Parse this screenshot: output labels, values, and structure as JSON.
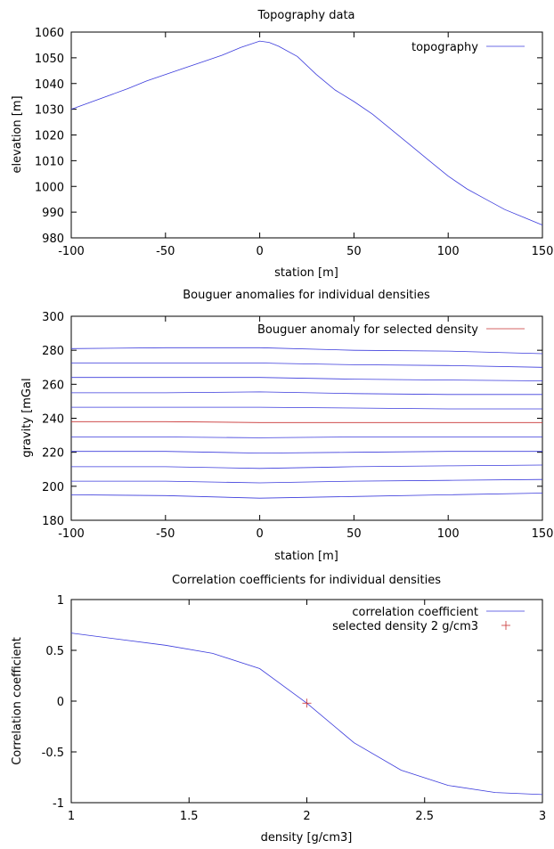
{
  "chart_data": [
    {
      "type": "line",
      "title": "Topography data",
      "xlabel": "station [m]",
      "ylabel": "elevation [m]",
      "xlim": [
        -100,
        150
      ],
      "ylim": [
        980,
        1060
      ],
      "xticks": [
        -100,
        -50,
        0,
        50,
        100,
        150
      ],
      "yticks": [
        980,
        990,
        1000,
        1010,
        1020,
        1030,
        1040,
        1050,
        1060
      ],
      "legend_position": "top-right",
      "grid": false,
      "series": [
        {
          "name": "topography",
          "color": "#3b3bdc",
          "x": [
            -100,
            -70,
            -60,
            -50,
            -40,
            -30,
            -20,
            -10,
            0,
            5,
            10,
            20,
            30,
            40,
            50,
            60,
            70,
            80,
            90,
            100,
            110,
            120,
            130,
            140,
            150
          ],
          "y": [
            1030,
            1038,
            1041,
            1043.5,
            1046,
            1048.5,
            1051,
            1054,
            1056.5,
            1056,
            1054.5,
            1050.5,
            1043.5,
            1037.5,
            1033,
            1028,
            1022,
            1016,
            1010,
            1004,
            999,
            995,
            991,
            988,
            985
          ]
        }
      ]
    },
    {
      "type": "line",
      "title": "Bouguer anomalies for individual densities",
      "xlabel": "station [m]",
      "ylabel": "gravity [mGal",
      "xlim": [
        -100,
        150
      ],
      "ylim": [
        180,
        300
      ],
      "xticks": [
        -100,
        -50,
        0,
        50,
        100,
        150
      ],
      "yticks": [
        180,
        200,
        220,
        240,
        260,
        280,
        300
      ],
      "legend_position": "top-right",
      "grid": false,
      "legend_label": "Bouguer anomaly for selected density",
      "selected_color": "#c83232",
      "curve_color": "#3b3bdc",
      "x": [
        -100,
        -50,
        0,
        50,
        100,
        150
      ],
      "curves": [
        [
          195,
          194.5,
          193,
          194,
          195,
          196
        ],
        [
          203,
          203,
          202,
          203,
          203.5,
          204
        ],
        [
          211.5,
          211.5,
          210.5,
          211.5,
          212,
          212.5
        ],
        [
          220.5,
          220.5,
          219.5,
          220,
          220.5,
          220.5
        ],
        [
          229,
          229,
          228.5,
          229,
          229,
          229
        ],
        [
          238,
          238,
          237.5,
          237.5,
          237.5,
          237.5
        ],
        [
          246.5,
          246.5,
          246.5,
          246,
          245.5,
          245.5
        ],
        [
          255,
          255,
          255.5,
          254.5,
          254,
          254
        ],
        [
          264,
          264,
          264,
          263,
          262.5,
          262
        ],
        [
          272.5,
          272.5,
          272.5,
          271.5,
          271,
          270
        ],
        [
          281,
          281.5,
          281.5,
          280,
          279.5,
          278
        ]
      ],
      "selected_index": 5
    },
    {
      "type": "line",
      "title": "Correlation coefficients for individual densities",
      "xlabel": "density [g/cm3]",
      "ylabel": "Correlation coefficient",
      "xlim": [
        1,
        3
      ],
      "ylim": [
        -1,
        1
      ],
      "xticks": [
        "1",
        "1.5",
        "2",
        "2.5",
        "3"
      ],
      "yticks": [
        "-1",
        "-0.5",
        "0",
        "0.5",
        "1"
      ],
      "legend_position": "top-right",
      "grid": false,
      "series": [
        {
          "name": "correlation coefficient",
          "color": "#3b3bdc",
          "x": [
            1.0,
            1.2,
            1.4,
            1.6,
            1.8,
            2.0,
            2.2,
            2.4,
            2.6,
            2.8,
            3.0
          ],
          "y": [
            0.67,
            0.61,
            0.55,
            0.47,
            0.32,
            -0.02,
            -0.41,
            -0.68,
            -0.83,
            -0.9,
            -0.92
          ]
        }
      ],
      "selected": {
        "name": "selected density 2 g/cm3",
        "color": "#c83232",
        "x": 2.0,
        "y": -0.02
      }
    }
  ]
}
